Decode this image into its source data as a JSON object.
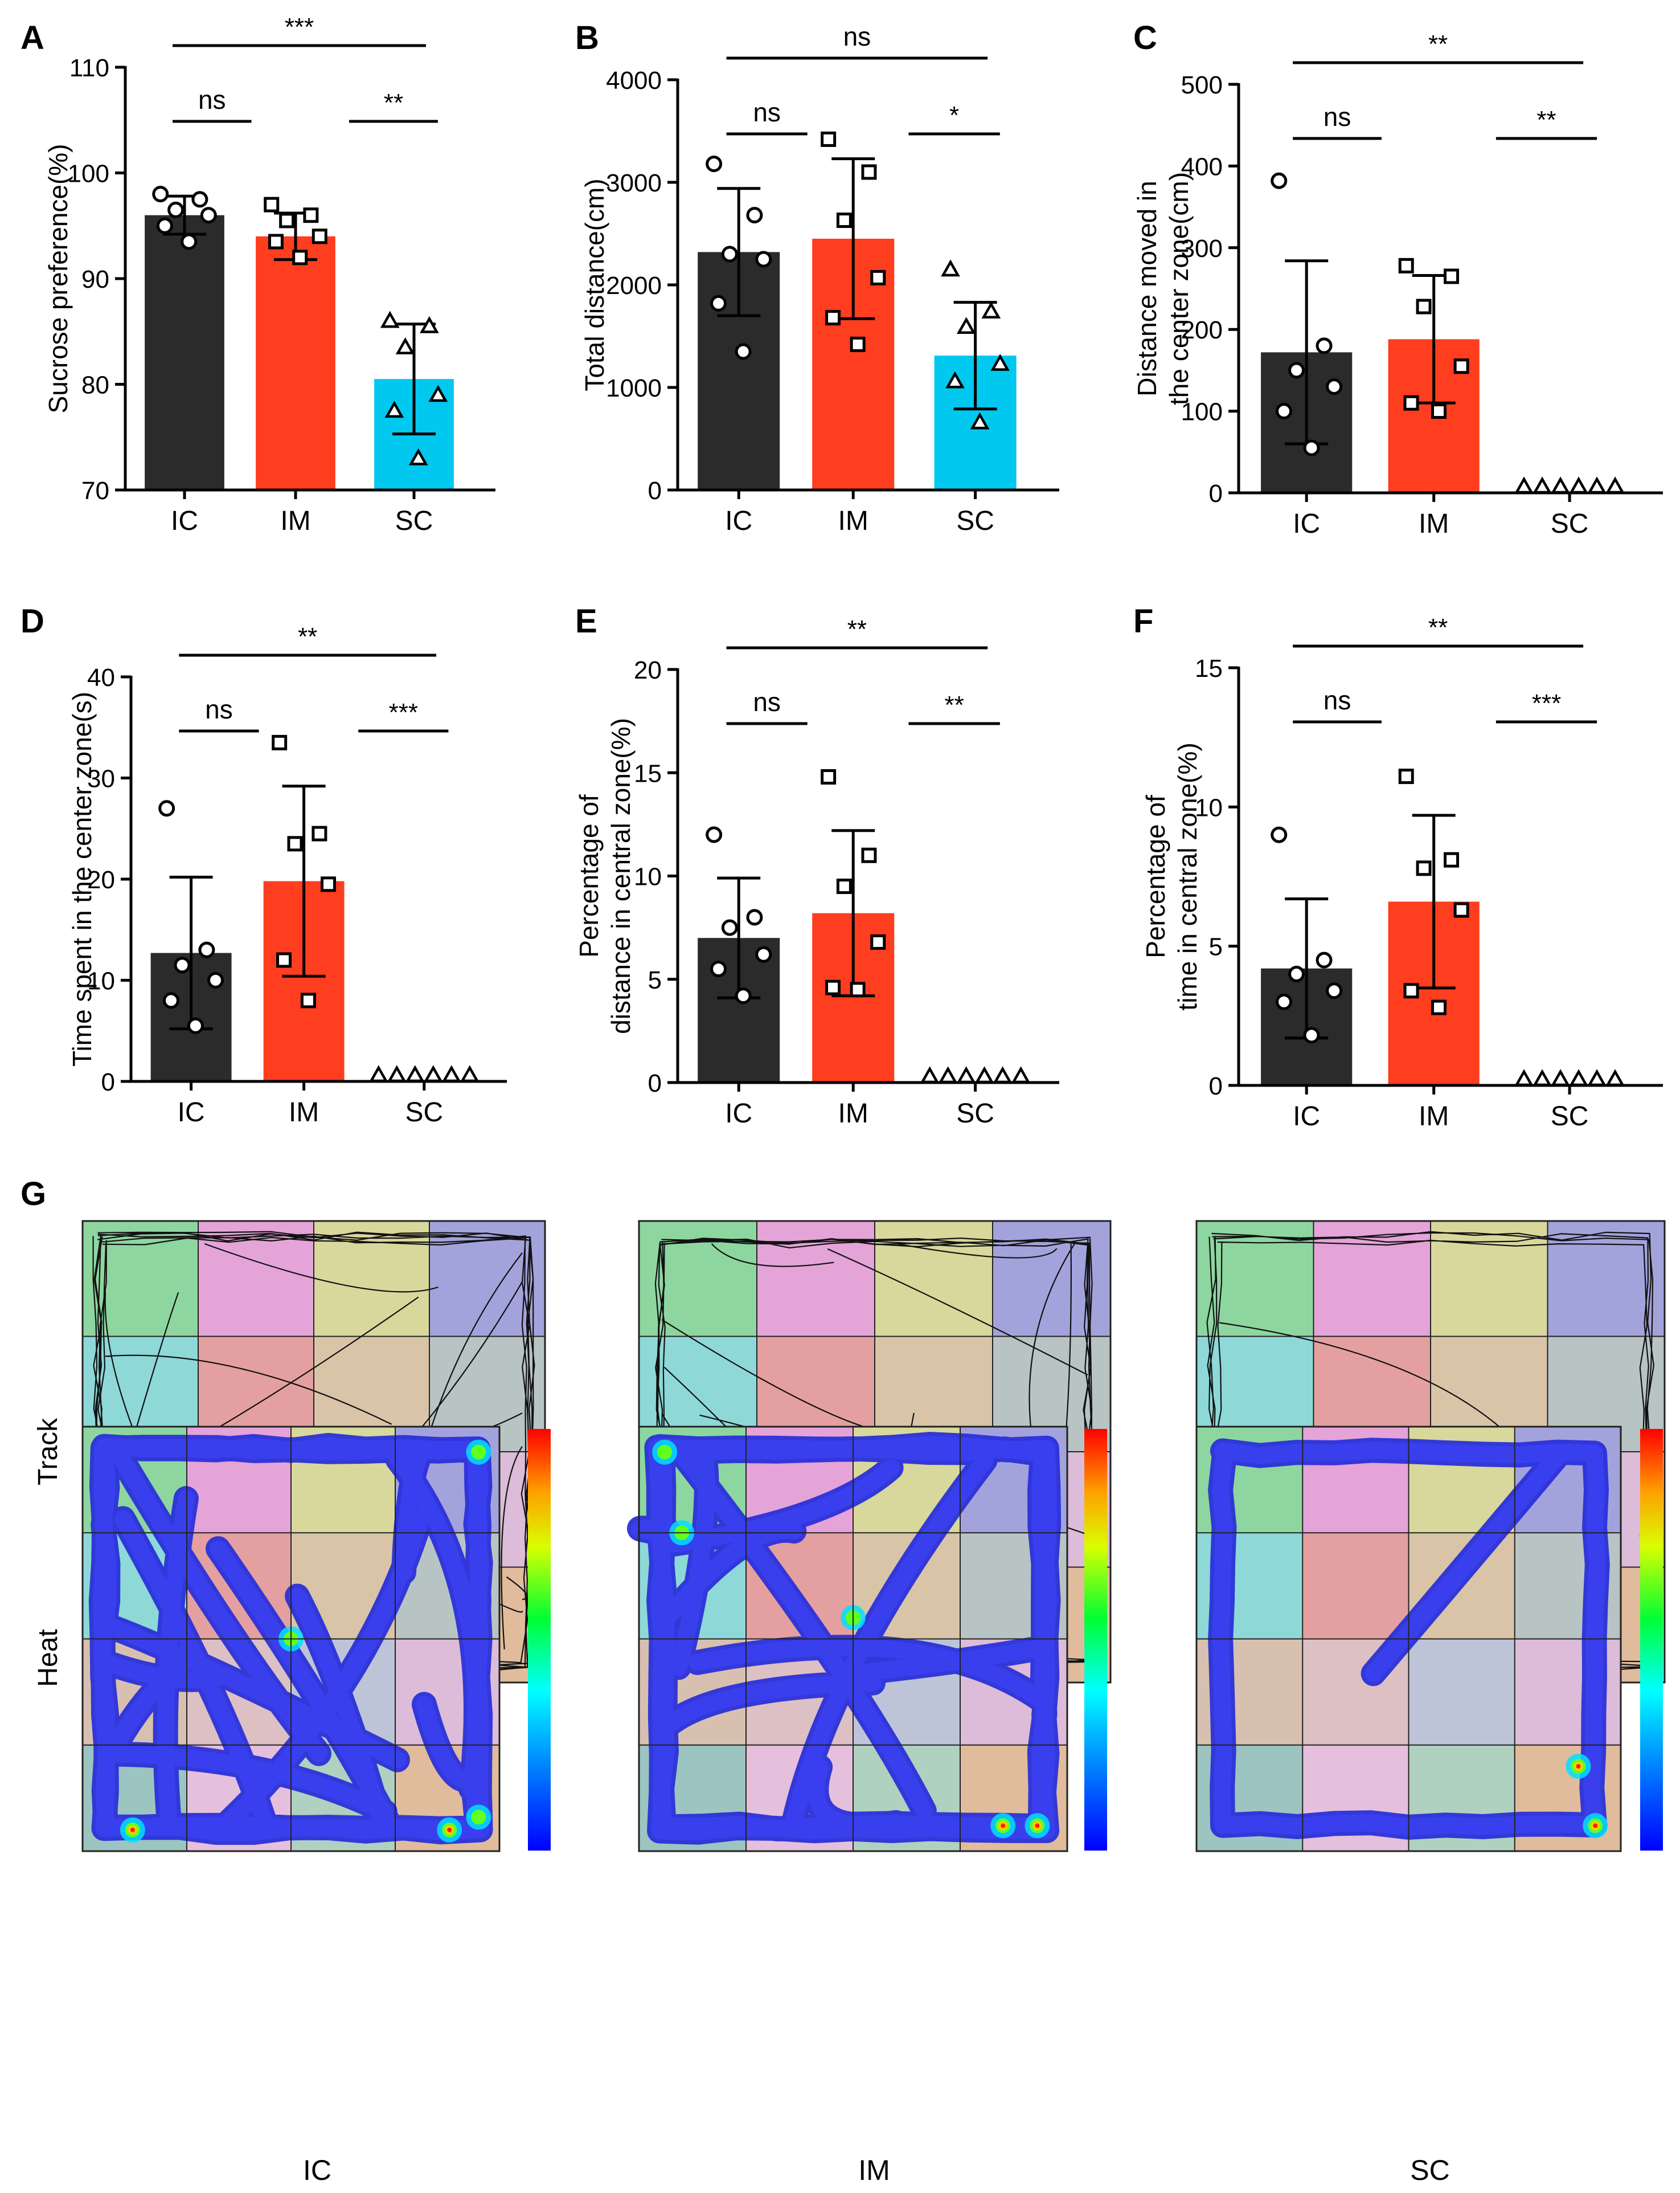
{
  "colors": {
    "IC": "#2b2b2b",
    "IM": "#ff3d1f",
    "SC": "#00c8ef",
    "axis": "#000000"
  },
  "chart_data": [
    {
      "panel": "A",
      "type": "bar",
      "ylabel": "Sucrose preference(%)",
      "categories": [
        "IC",
        "IM",
        "SC"
      ],
      "ylim": [
        70,
        110
      ],
      "yticks": [
        "70",
        "80",
        "90",
        "100",
        "110"
      ],
      "means": [
        96,
        94,
        80.5
      ],
      "sd": [
        1.8,
        2.2,
        5.2
      ],
      "points": [
        [
          98,
          97.5,
          96.5,
          96,
          95,
          93.5
        ],
        [
          97,
          96,
          95.5,
          94,
          93.5,
          92
        ],
        [
          86,
          85.5,
          83.5,
          79,
          77.5,
          73
        ]
      ],
      "markers": [
        "circle",
        "square",
        "triangle"
      ],
      "comparisons": [
        {
          "from": 0,
          "to": 1,
          "label": "ns"
        },
        {
          "from": 1,
          "to": 2,
          "label": "**"
        },
        {
          "from": 0,
          "to": 2,
          "label": "***"
        }
      ]
    },
    {
      "panel": "B",
      "type": "bar",
      "ylabel": "Total distance(cm)",
      "categories": [
        "IC",
        "IM",
        "SC"
      ],
      "ylim": [
        0,
        4000
      ],
      "yticks": [
        "0",
        "1000",
        "2000",
        "3000",
        "4000"
      ],
      "means": [
        2320,
        2450,
        1310
      ],
      "sd": [
        620,
        780,
        520
      ],
      "points": [
        [
          3180,
          2680,
          2300,
          2250,
          1820,
          1350
        ],
        [
          3420,
          3100,
          2630,
          2070,
          1680,
          1420
        ],
        [
          2150,
          1740,
          1590,
          1230,
          1060,
          660
        ]
      ],
      "markers": [
        "circle",
        "square",
        "triangle"
      ],
      "comparisons": [
        {
          "from": 0,
          "to": 1,
          "label": "ns"
        },
        {
          "from": 1,
          "to": 2,
          "label": "*"
        },
        {
          "from": 0,
          "to": 2,
          "label": "ns"
        }
      ]
    },
    {
      "panel": "C",
      "type": "bar",
      "ylabel": "Distance moved in the center zone(cm)",
      "ylabel_lines": [
        "Distance moved in",
        "the center zone(cm)"
      ],
      "categories": [
        "IC",
        "IM",
        "SC"
      ],
      "ylim": [
        0,
        500
      ],
      "yticks": [
        "0",
        "100",
        "200",
        "300",
        "400",
        "500"
      ],
      "means": [
        172,
        188,
        0
      ],
      "sd": [
        112,
        78,
        0
      ],
      "points": [
        [
          382,
          180,
          150,
          130,
          100,
          55
        ],
        [
          278,
          265,
          228,
          155,
          110,
          100
        ],
        [
          0,
          0,
          0,
          0,
          0,
          0
        ]
      ],
      "markers": [
        "circle",
        "square",
        "triangle"
      ],
      "comparisons": [
        {
          "from": 0,
          "to": 1,
          "label": "ns"
        },
        {
          "from": 1,
          "to": 2,
          "label": "**"
        },
        {
          "from": 0,
          "to": 2,
          "label": "**"
        }
      ]
    },
    {
      "panel": "D",
      "type": "bar",
      "ylabel": "Time spent in the center zone(s)",
      "categories": [
        "IC",
        "IM",
        "SC"
      ],
      "ylim": [
        0,
        40
      ],
      "yticks": [
        "0",
        "10",
        "20",
        "30",
        "40"
      ],
      "means": [
        12.7,
        19.8,
        0
      ],
      "sd": [
        7.5,
        9.4,
        0
      ],
      "points": [
        [
          27,
          13,
          11.5,
          10,
          8,
          5.5
        ],
        [
          33.5,
          24.5,
          23.5,
          19.5,
          12,
          8
        ],
        [
          0,
          0,
          0,
          0,
          0,
          0
        ]
      ],
      "markers": [
        "circle",
        "square",
        "triangle"
      ],
      "comparisons": [
        {
          "from": 0,
          "to": 1,
          "label": "ns"
        },
        {
          "from": 1,
          "to": 2,
          "label": "***"
        },
        {
          "from": 0,
          "to": 2,
          "label": "**"
        }
      ]
    },
    {
      "panel": "E",
      "type": "bar",
      "ylabel": "Percentage of distance in central zone(%)",
      "ylabel_lines": [
        "Percentage of",
        "distance in central zone(%)"
      ],
      "categories": [
        "IC",
        "IM",
        "SC"
      ],
      "ylim": [
        0,
        20
      ],
      "yticks": [
        "0",
        "5",
        "10",
        "15",
        "20"
      ],
      "means": [
        7,
        8.2,
        0
      ],
      "sd": [
        2.9,
        4.0,
        0
      ],
      "points": [
        [
          12,
          8,
          7.5,
          6.2,
          5.5,
          4.2
        ],
        [
          14.8,
          11,
          9.5,
          6.8,
          4.6,
          4.5
        ],
        [
          0,
          0,
          0,
          0,
          0,
          0
        ]
      ],
      "markers": [
        "circle",
        "square",
        "triangle"
      ],
      "comparisons": [
        {
          "from": 0,
          "to": 1,
          "label": "ns"
        },
        {
          "from": 1,
          "to": 2,
          "label": "**"
        },
        {
          "from": 0,
          "to": 2,
          "label": "**"
        }
      ]
    },
    {
      "panel": "F",
      "type": "bar",
      "ylabel": "Percentage of time in central zone(%)",
      "ylabel_lines": [
        "Percentage of",
        "time in central zone(%)"
      ],
      "categories": [
        "IC",
        "IM",
        "SC"
      ],
      "ylim": [
        0,
        15
      ],
      "yticks": [
        "0",
        "5",
        "10",
        "15"
      ],
      "means": [
        4.2,
        6.6,
        0
      ],
      "sd": [
        2.5,
        3.1,
        0
      ],
      "points": [
        [
          9,
          4.5,
          4,
          3.4,
          3,
          1.8
        ],
        [
          11.1,
          8.1,
          7.8,
          6.3,
          3.4,
          2.8
        ],
        [
          0,
          0,
          0,
          0,
          0,
          0
        ]
      ],
      "markers": [
        "circle",
        "square",
        "triangle"
      ],
      "comparisons": [
        {
          "from": 0,
          "to": 1,
          "label": "ns"
        },
        {
          "from": 1,
          "to": 2,
          "label": "***"
        },
        {
          "from": 0,
          "to": 2,
          "label": "**"
        }
      ]
    },
    {
      "panel": "G",
      "type": "heatmap",
      "row_labels": [
        "Track",
        "Heat"
      ],
      "column_labels": [
        "IC",
        "IM",
        "SC"
      ],
      "grid": "4x4 zones"
    }
  ]
}
